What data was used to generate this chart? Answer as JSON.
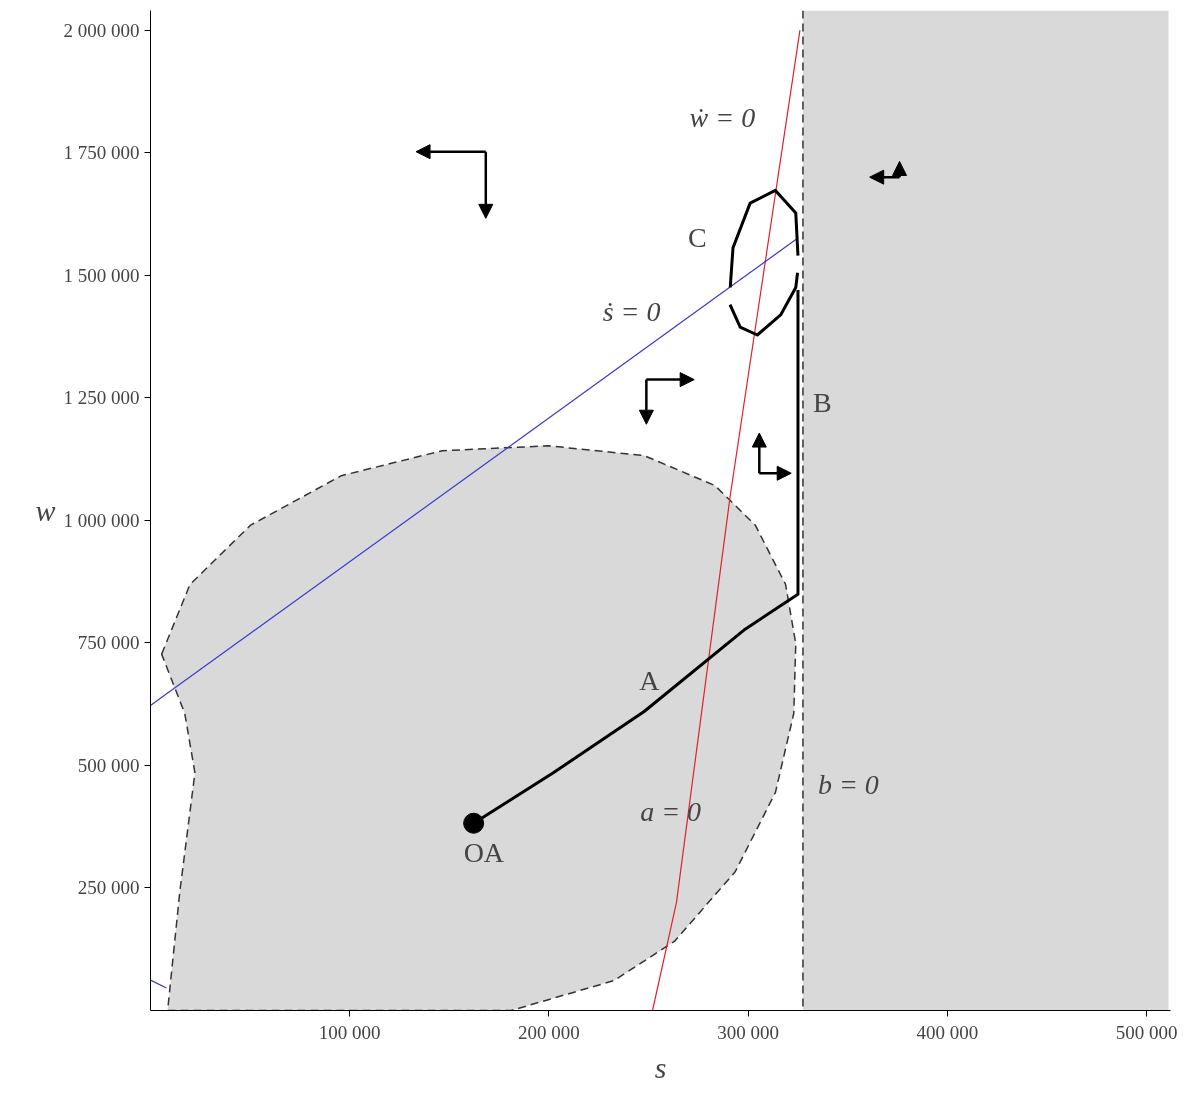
{
  "chart_data": {
    "type": "line",
    "xlabel": "s",
    "ylabel": "w",
    "xlim": [
      0,
      512000
    ],
    "ylim": [
      0,
      2040000
    ],
    "xticks": [
      {
        "value": 100000,
        "label": "100 000"
      },
      {
        "value": 200000,
        "label": "200 000"
      },
      {
        "value": 300000,
        "label": "300 000"
      },
      {
        "value": 400000,
        "label": "400 000"
      },
      {
        "value": 500000,
        "label": "500 000"
      }
    ],
    "yticks": [
      {
        "value": 250000,
        "label": "250 000"
      },
      {
        "value": 500000,
        "label": "500 000"
      },
      {
        "value": 750000,
        "label": "750 000"
      },
      {
        "value": 1000000,
        "label": "1 000 000"
      },
      {
        "value": 1250000,
        "label": "1 250 000"
      },
      {
        "value": 1500000,
        "label": "1 500 000"
      },
      {
        "value": 1750000,
        "label": "1 750 000"
      },
      {
        "value": 2000000,
        "label": "2 000 000"
      }
    ],
    "grid": false,
    "bands": [
      {
        "axis": "x",
        "from": 327500,
        "to": 511000,
        "color": "#d9d9d9"
      }
    ],
    "ref_lines": [
      {
        "axis": "x",
        "value": 327500,
        "color": "#333333",
        "line_style": "dashed"
      }
    ],
    "series": [
      {
        "type": "area",
        "color": "#d9d9d9",
        "line_style": "dashed",
        "x": [
          5600,
          19800,
          50200,
          95800,
          146500,
          199700,
          247800,
          283300,
          303600,
          318800,
          323900,
          322900,
          313700,
          293500,
          263000,
          232600,
          181000,
          8600,
          14700,
          22300,
          17200,
          5600
        ],
        "values": [
          727000,
          869000,
          990000,
          1091000,
          1142000,
          1152000,
          1132000,
          1071000,
          990000,
          869000,
          748000,
          606000,
          445000,
          283000,
          141000,
          61000,
          0,
          0,
          242000,
          485000,
          606000,
          727000
        ]
      },
      {
        "color": "#e0202a",
        "x": [
          252000,
          264000,
          291000,
          326000
        ],
        "values": [
          0,
          220000,
          1050000,
          2000000
        ]
      },
      {
        "color": "#3a3ad0",
        "x": [
          0,
          6000,
          180000,
          325000
        ],
        "values": [
          622000,
          640000,
          1150000,
          1576000
        ]
      },
      {
        "color": "#3a3ad0",
        "x": [
          0,
          8000
        ],
        "values": [
          62000,
          46000
        ]
      },
      {
        "color": "#000000",
        "x": [
          162200,
          202200,
          247800,
          298500,
          325000,
          325000
        ],
        "values": [
          382000,
          485000,
          610000,
          778000,
          849000,
          1470000
        ]
      },
      {
        "color": "#000000",
        "x": [
          291000,
          292400,
          301000,
          313700,
          323900,
          325000
        ],
        "values": [
          1475000,
          1556000,
          1647000,
          1673000,
          1627000,
          1540000
        ]
      },
      {
        "color": "#000000",
        "x": [
          290900,
          296000,
          304600,
          316300,
          323900,
          324800
        ],
        "values": [
          1440000,
          1394000,
          1378000,
          1419000,
          1475000,
          1505000
        ]
      },
      {
        "type": "scatter",
        "color": "#000000",
        "marker": "circle",
        "x": [
          162200
        ],
        "values": [
          382000
        ]
      }
    ],
    "annotations": [
      {
        "text": "ẇ = 0",
        "x": 318300,
        "y": 1790000
      },
      {
        "text": "ṡ = 0",
        "x": 232000,
        "y": 1302000
      },
      {
        "text": "C",
        "x": 292400,
        "y": 1556000
      },
      {
        "text": "B",
        "x": 325000,
        "y": 1240000
      },
      {
        "text": "A",
        "x": 247800,
        "y": 610000
      },
      {
        "text": "OA",
        "x": 162200,
        "y": 382000
      },
      {
        "text": "a = 0",
        "x": 293500,
        "y": 283000
      },
      {
        "text": "b = 0",
        "x": 327500,
        "y": 430000
      }
    ]
  }
}
